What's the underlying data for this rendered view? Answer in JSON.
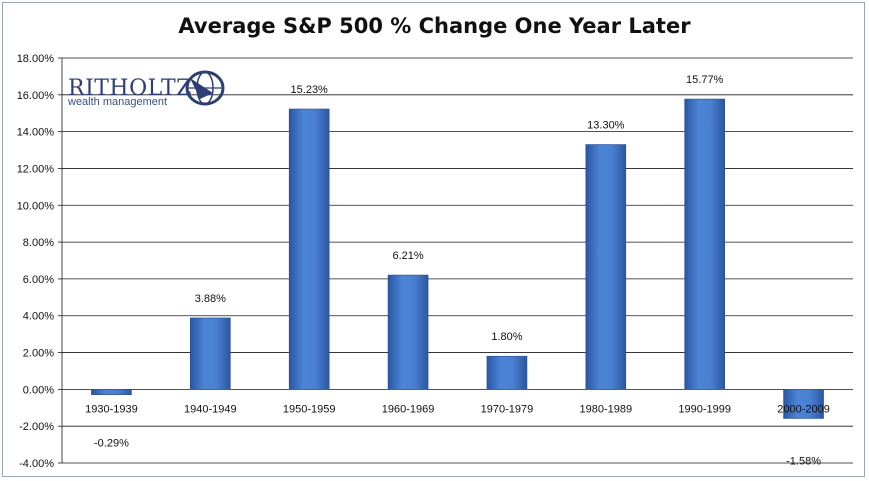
{
  "chart_data": {
    "type": "bar",
    "title": "Average S&P 500 % Change One Year Later",
    "categories": [
      "1930-1939",
      "1940-1949",
      "1950-1959",
      "1960-1969",
      "1970-1979",
      "1980-1989",
      "1990-1999",
      "2000-2009"
    ],
    "values": [
      -0.29,
      3.88,
      15.23,
      6.21,
      1.8,
      13.3,
      15.77,
      -1.58
    ],
    "data_labels": [
      "-0.29%",
      "3.88%",
      "15.23%",
      "6.21%",
      "1.80%",
      "13.30%",
      "15.77%",
      "-1.58%"
    ],
    "ylim": [
      -4,
      18
    ],
    "yticks": [
      18,
      16,
      14,
      12,
      10,
      8,
      6,
      4,
      2,
      0,
      -2,
      -4
    ],
    "ytick_labels": [
      "18.00%",
      "16.00%",
      "14.00%",
      "12.00%",
      "10.00%",
      "8.00%",
      "6.00%",
      "4.00%",
      "2.00%",
      "0.00%",
      "-2.00%",
      "-4.00%"
    ],
    "grid": true,
    "bar_color": "#3f72c4",
    "legend": "none"
  },
  "logo": {
    "name": "RITHOLTZ",
    "tagline": "wealth management"
  }
}
